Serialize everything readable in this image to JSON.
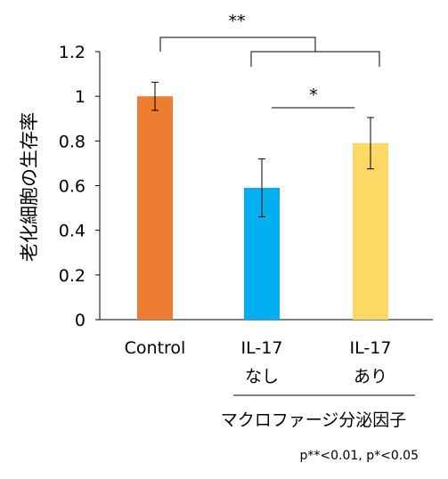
{
  "chart_data": {
    "type": "bar",
    "ylabel": "老化細胞の生存率",
    "ylim": [
      0,
      1.2
    ],
    "yticks": [
      "0",
      "0.2",
      "0.4",
      "0.6",
      "0.8",
      "1",
      "1.2"
    ],
    "categories": [
      {
        "line1": "Control",
        "line2": ""
      },
      {
        "line1": "IL-17",
        "line2": "なし"
      },
      {
        "line1": "IL-17",
        "line2": "あり"
      }
    ],
    "values": [
      1.0,
      0.59,
      0.79
    ],
    "errors": [
      0.063,
      0.13,
      0.115
    ],
    "colors": [
      "#ED7D31",
      "#00B0F0",
      "#FFD966"
    ],
    "group_label": "マクロファージ分泌因子",
    "significance": [
      {
        "label": "**",
        "from": 0,
        "to": "1-2"
      },
      {
        "label": "*",
        "from": 1,
        "to": 2
      }
    ],
    "pvalue_note": "p**<0.01, p*<0.05",
    "grid": false
  }
}
